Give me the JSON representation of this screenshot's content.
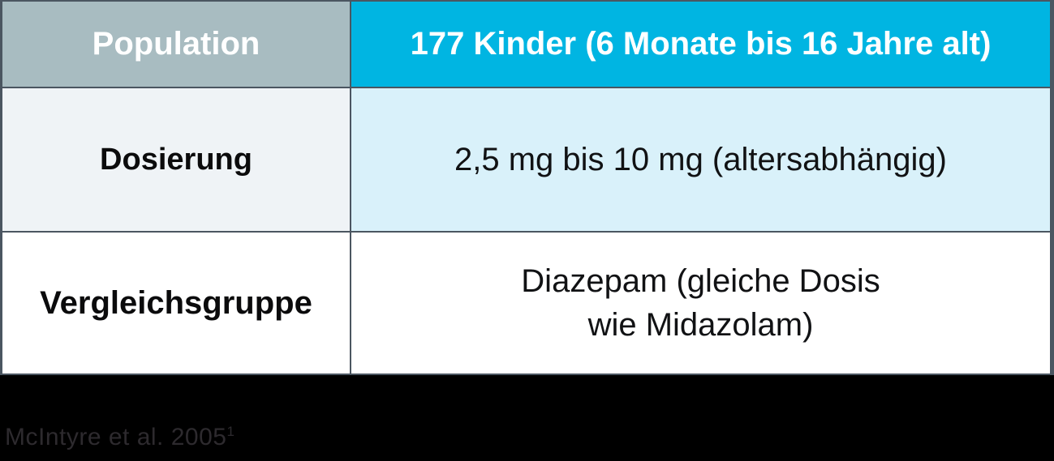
{
  "table": {
    "header": {
      "label": "Population",
      "value": "177 Kinder (6 Monate bis 16 Jahre alt)"
    },
    "rows": [
      {
        "label": "Dosierung",
        "value": "2,5 mg bis 10 mg (altersabhängig)"
      },
      {
        "label": "Vergleichsgruppe",
        "value": "Diazepam (gleiche Dosis\nwie Midazolam)"
      }
    ]
  },
  "footer": {
    "citation": "McIntyre et al. 2005",
    "footnote_marker": "1"
  },
  "colors": {
    "accent_cyan": "#00b5e2",
    "header_label_bg": "#a8bcc1",
    "row2_label_bg": "#eff3f6",
    "row2_value_bg": "#d9f1fa",
    "row3_bg": "#ffffff",
    "border": "#4b5661",
    "canvas_bg": "#000000",
    "header_text": "#ffffff",
    "footer_text": "#2d2a2e"
  }
}
